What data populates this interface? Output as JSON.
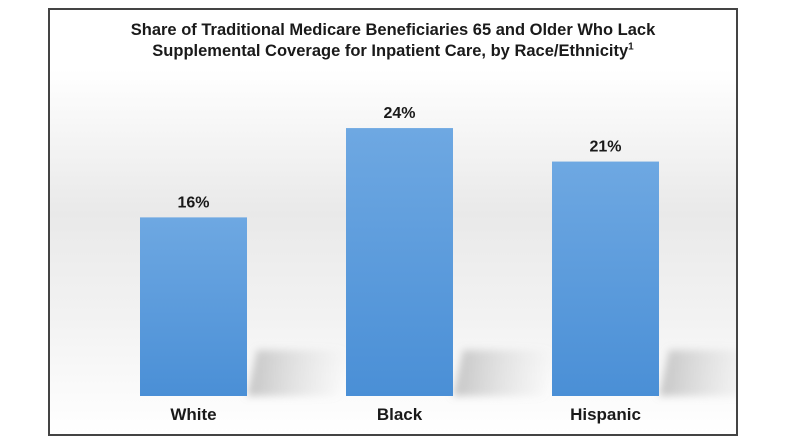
{
  "chart_data": {
    "type": "bar",
    "title_line1": "Share of Traditional Medicare Beneficiaries 65 and Older Who Lack",
    "title_line2": "Supplemental Coverage for Inpatient Care, by Race/Ethnicity",
    "title_footnote": "1",
    "categories": [
      "White",
      "Black",
      "Hispanic"
    ],
    "values": [
      16,
      24,
      21
    ],
    "value_labels": [
      "16%",
      "24%",
      "21%"
    ],
    "ylim": [
      0,
      27.5
    ],
    "grid": false,
    "legend": "none",
    "bar_color": "#4a8fd6",
    "bar_color_light": "#6ea8e2"
  }
}
